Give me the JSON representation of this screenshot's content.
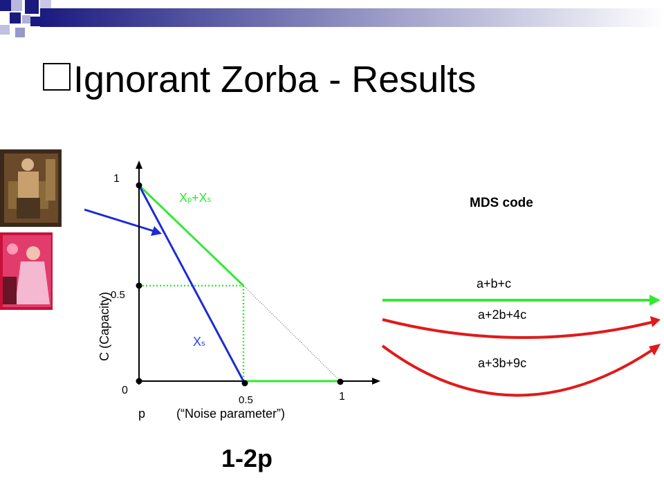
{
  "slide": {
    "title": "Ignorant Zorba - Results",
    "subtitle_formula": "1-2p"
  },
  "diagram": {
    "y_tick_1": "1",
    "y_tick_05": "0.5",
    "y_tick_0": "0",
    "x_tick_05": "0.5",
    "x_tick_1": "1",
    "y_axis_label": "C     (Capacity)",
    "x_axis_label_p": "p",
    "x_axis_label_desc": "(“Noise parameter”)",
    "green_curve_label": {
      "a": "X",
      "a_sub": "p",
      "plus": "+X",
      "b_sub": "s"
    },
    "blue_curve_label": {
      "a": "X",
      "a_sub": "s"
    }
  },
  "mds": {
    "heading": "MDS code",
    "codes": [
      "a+b+c",
      "a+2b+4c",
      "a+3b+9c"
    ]
  },
  "colors": {
    "green": "#33e833",
    "blue": "#1a2bd6",
    "red": "#e01a1a",
    "green_text": "#2ee82e",
    "blue_text": "#2244ee",
    "header_gradient_start": "#1a1a80",
    "header_gradient_end": "#ffffff"
  }
}
